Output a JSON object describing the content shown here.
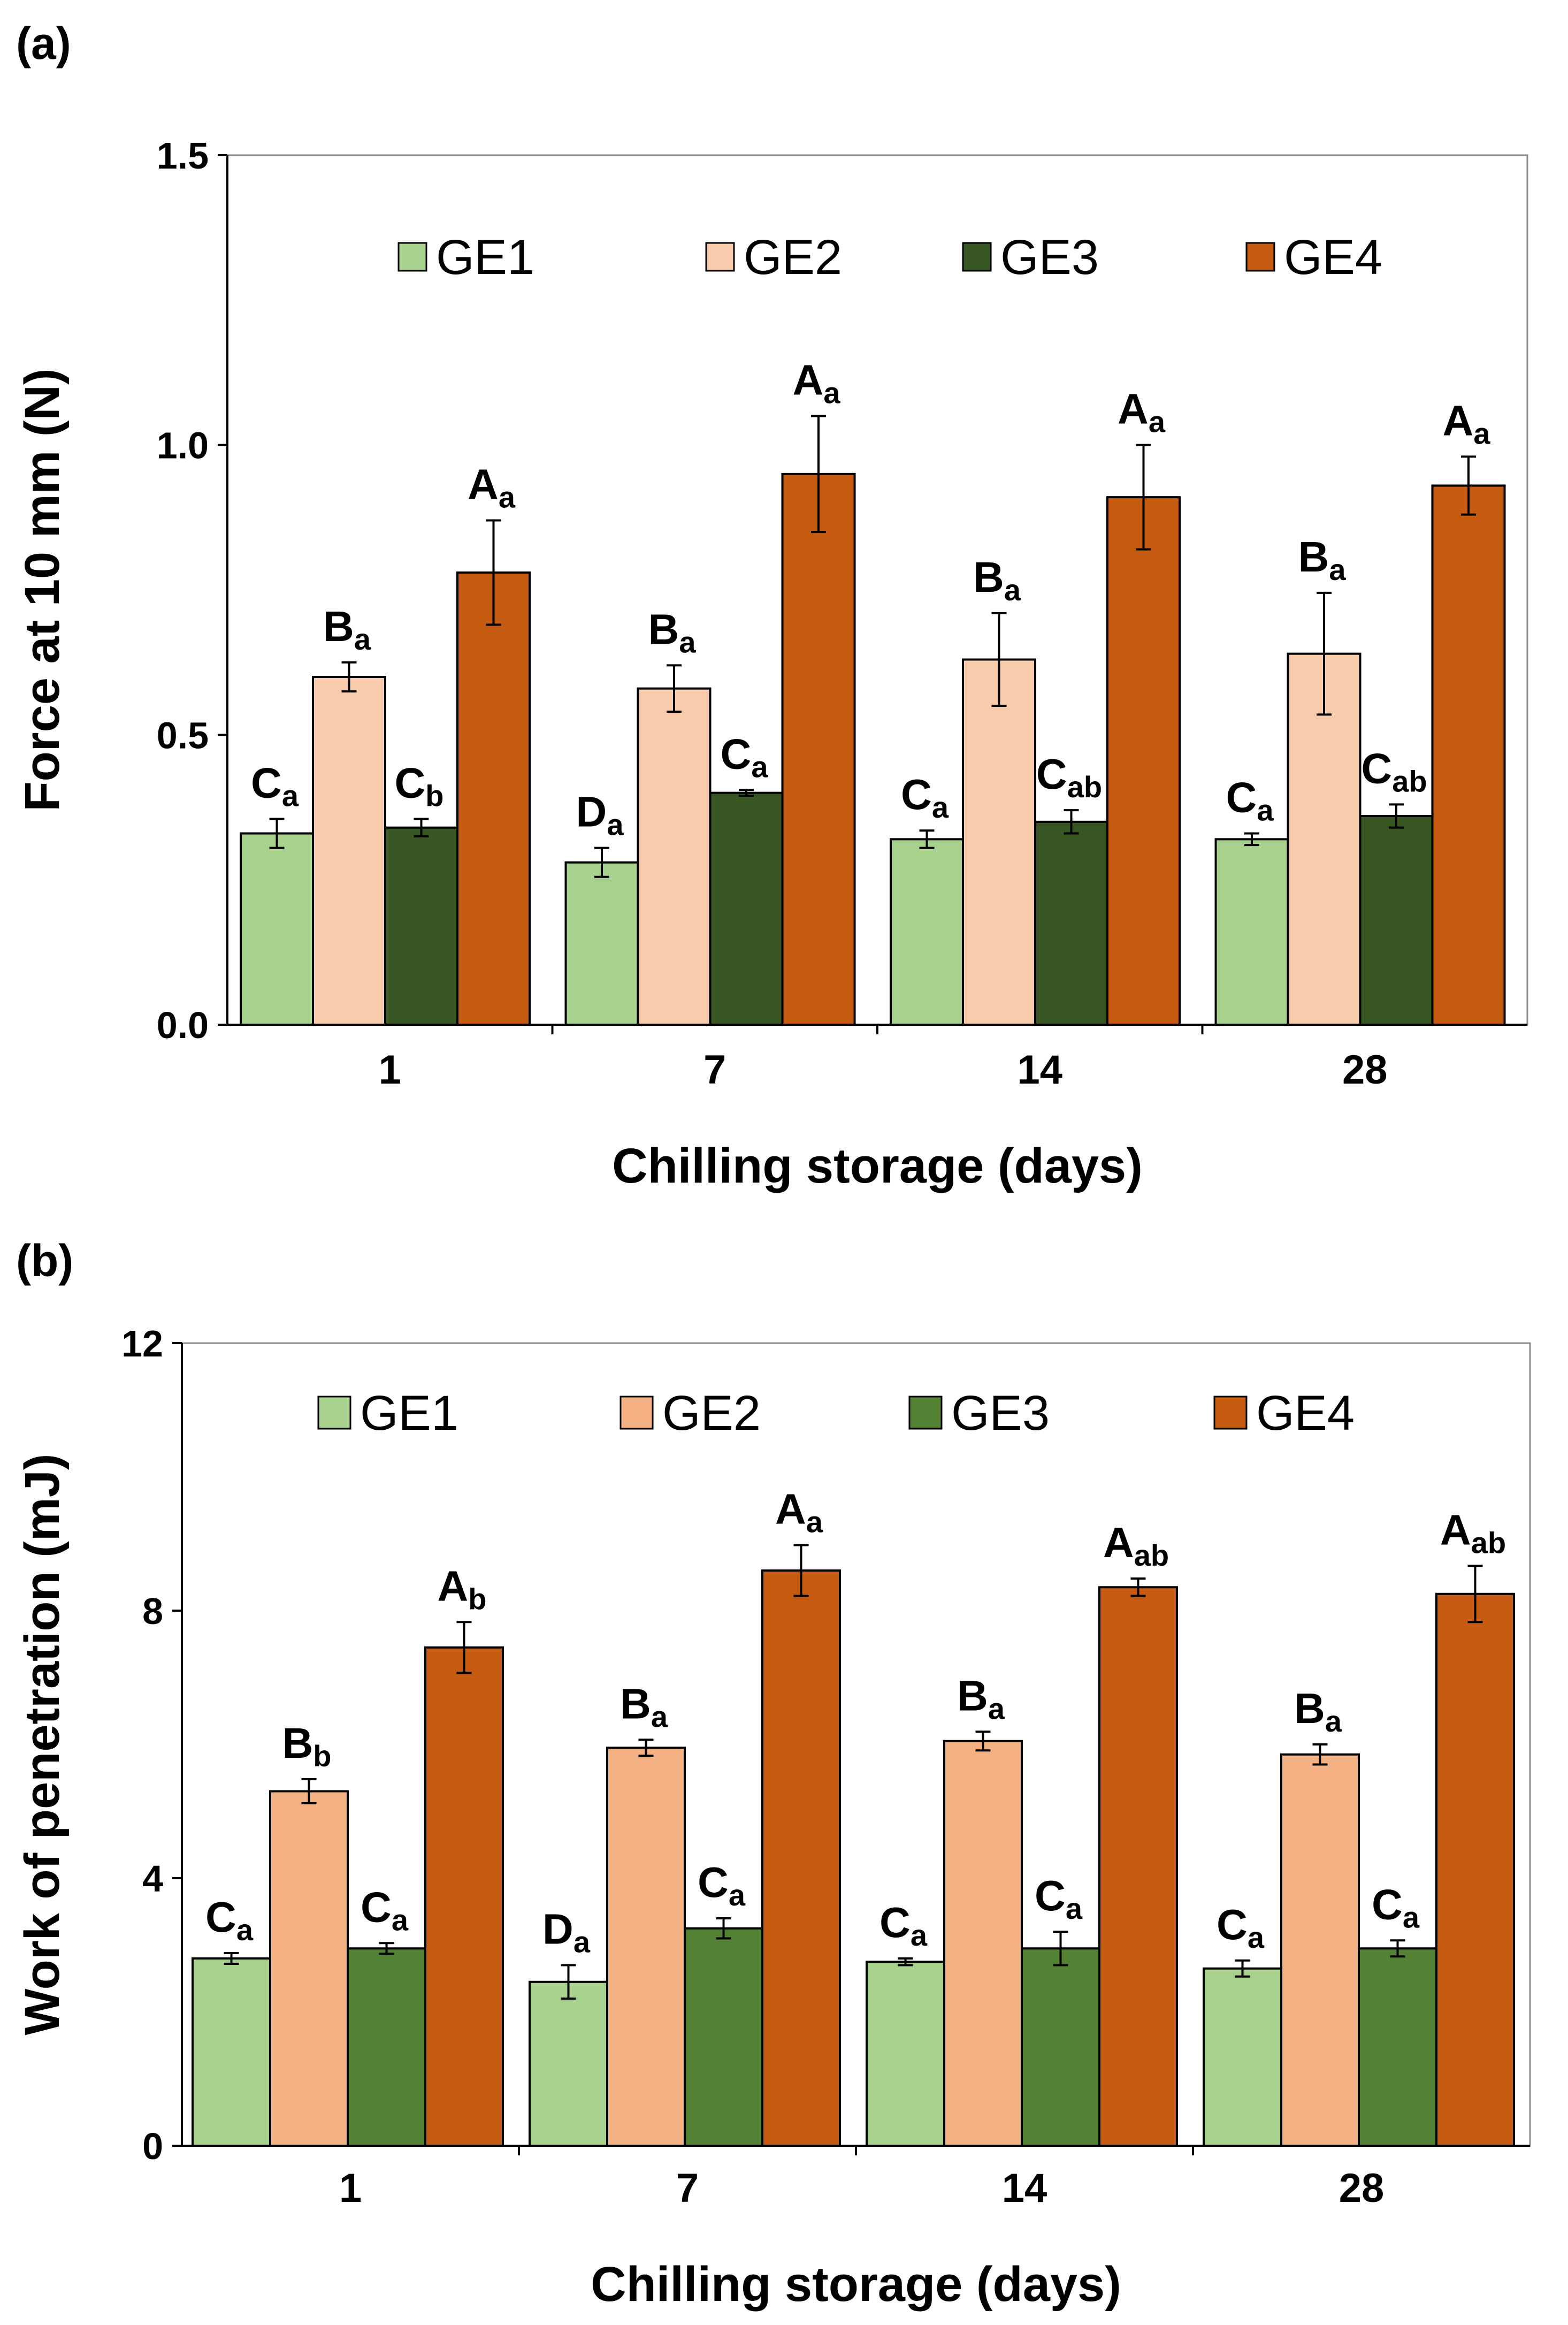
{
  "chart_data": [
    {
      "panel": "(a)",
      "type": "bar",
      "categories": [
        "1",
        "7",
        "14",
        "28"
      ],
      "xlabel": "Chilling storage (days)",
      "ylabel": "Force at 10 mm (N)",
      "ylim": [
        0,
        1.5
      ],
      "yticks": [
        "0.0",
        "0.5",
        "1.0",
        "1.5"
      ],
      "grid": false,
      "legend_position": "top-inside",
      "series": [
        {
          "name": "GE1",
          "color": "#a9d18e",
          "values": [
            0.33,
            0.28,
            0.32,
            0.32
          ],
          "errors": [
            0.025,
            0.025,
            0.015,
            0.01
          ],
          "labels": [
            [
              "C",
              "a"
            ],
            [
              "D",
              "a"
            ],
            [
              "C",
              "a"
            ],
            [
              "C",
              "a"
            ]
          ]
        },
        {
          "name": "GE2",
          "color": "#f8cbad",
          "values": [
            0.6,
            0.58,
            0.63,
            0.64
          ],
          "errors": [
            0.025,
            0.04,
            0.08,
            0.105
          ],
          "labels": [
            [
              "B",
              "a"
            ],
            [
              "B",
              "a"
            ],
            [
              "B",
              "a"
            ],
            [
              "B",
              "a"
            ]
          ]
        },
        {
          "name": "GE3",
          "color": "#385723",
          "values": [
            0.34,
            0.4,
            0.35,
            0.36
          ],
          "errors": [
            0.015,
            0.005,
            0.02,
            0.02
          ],
          "labels": [
            [
              "C",
              "b"
            ],
            [
              "C",
              "a"
            ],
            [
              "C",
              "ab"
            ],
            [
              "C",
              "ab"
            ]
          ]
        },
        {
          "name": "GE4",
          "color": "#c55a11",
          "values": [
            0.78,
            0.95,
            0.91,
            0.93
          ],
          "errors": [
            0.09,
            0.1,
            0.09,
            0.05
          ],
          "labels": [
            [
              "A",
              "a"
            ],
            [
              "A",
              "a"
            ],
            [
              "A",
              "a"
            ],
            [
              "A",
              "a"
            ]
          ]
        }
      ]
    },
    {
      "panel": "(b)",
      "type": "bar",
      "categories": [
        "1",
        "7",
        "14",
        "28"
      ],
      "xlabel": "Chilling storage (days)",
      "ylabel": "Work of penetration (mJ)",
      "ylim": [
        0,
        12
      ],
      "yticks": [
        "0",
        "4",
        "8",
        "12"
      ],
      "grid": false,
      "legend_position": "top-inside",
      "series": [
        {
          "name": "GE1",
          "color": "#a9d18e",
          "values": [
            2.8,
            2.45,
            2.75,
            2.65
          ],
          "errors": [
            0.08,
            0.25,
            0.05,
            0.12
          ],
          "labels": [
            [
              "C",
              "a"
            ],
            [
              "D",
              "a"
            ],
            [
              "C",
              "a"
            ],
            [
              "C",
              "a"
            ]
          ]
        },
        {
          "name": "GE2",
          "color": "#f4b183",
          "values": [
            5.3,
            5.95,
            6.05,
            5.85
          ],
          "errors": [
            0.18,
            0.12,
            0.14,
            0.15
          ],
          "labels": [
            [
              "B",
              "b"
            ],
            [
              "B",
              "a"
            ],
            [
              "B",
              "a"
            ],
            [
              "B",
              "a"
            ]
          ]
        },
        {
          "name": "GE3",
          "color": "#548235",
          "values": [
            2.95,
            3.25,
            2.95,
            2.95
          ],
          "errors": [
            0.08,
            0.15,
            0.25,
            0.12
          ],
          "labels": [
            [
              "C",
              "a"
            ],
            [
              "C",
              "a"
            ],
            [
              "C",
              "a"
            ],
            [
              "C",
              "a"
            ]
          ]
        },
        {
          "name": "GE4",
          "color": "#c55a11",
          "values": [
            7.45,
            8.6,
            8.35,
            8.25
          ],
          "errors": [
            0.38,
            0.38,
            0.13,
            0.42
          ],
          "labels": [
            [
              "A",
              "b"
            ],
            [
              "A",
              "a"
            ],
            [
              "A",
              "ab"
            ],
            [
              "A",
              "ab"
            ]
          ]
        }
      ]
    }
  ]
}
